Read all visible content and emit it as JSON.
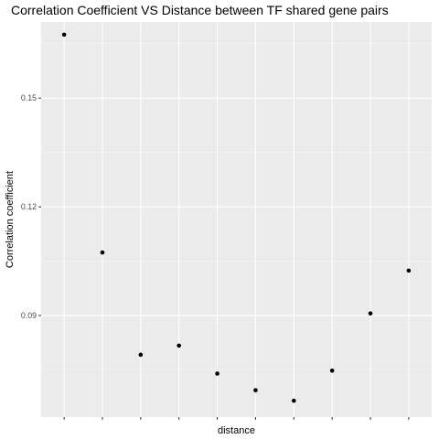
{
  "chart_data": {
    "type": "scatter",
    "title": "Correlation Coefficient VS Distance between TF shared gene pairs",
    "xlabel": "distance",
    "ylabel": "Correlation coefficient",
    "x_tick_labels": [
      "",
      "",
      "",
      "",
      "",
      "",
      "",
      "",
      "",
      ""
    ],
    "y_ticks": [
      0.09,
      0.12,
      0.15
    ],
    "y_tick_labels": [
      "0.09",
      "0.12",
      "0.15"
    ],
    "ylim": [
      0.062,
      0.171
    ],
    "x": [
      1,
      2,
      3,
      4,
      5,
      6,
      7,
      8,
      9,
      10
    ],
    "y": [
      0.1675,
      0.1074,
      0.0792,
      0.0817,
      0.074,
      0.0694,
      0.0665,
      0.0748,
      0.0906,
      0.1024
    ],
    "grid": true,
    "colors": {
      "panel": "#ebebeb",
      "grid_major": "#ffffff",
      "grid_minor": "#f5f5f5",
      "point": "#000000",
      "tick": "#333333"
    }
  }
}
